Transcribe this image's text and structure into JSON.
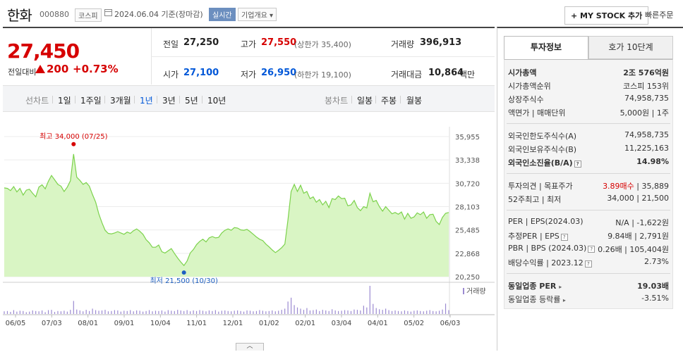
{
  "header": {
    "name": "한화",
    "code": "000880",
    "market": "코스피",
    "date": "2024.06.04 기준(장마감)",
    "realtime": "실시간",
    "company_btn": "기업개요 ▾",
    "mystock_btn": "+ MY STOCK 추가",
    "quick_order": "빠른주문"
  },
  "price": {
    "current": "27,450",
    "change_label": "전일대비",
    "change": "200",
    "change_pct": "+0.73%",
    "up_color": "#d60000"
  },
  "stats": {
    "prev_label": "전일",
    "prev": "27,250",
    "high_label": "고가",
    "high": "27,550",
    "upper_limit": "(상한가 35,400)",
    "vol_label": "거래량",
    "vol": "396,913",
    "open_label": "시가",
    "open": "27,100",
    "low_label": "저가",
    "low": "26,950",
    "lower_limit": "(하한가 19,100)",
    "amt_label": "거래대금",
    "amt": "10,864",
    "amt_unit": "백만"
  },
  "period_tabs": {
    "line_label": "선차트",
    "line_items": [
      "1일",
      "1주일",
      "3개월",
      "1년",
      "3년",
      "5년",
      "10년"
    ],
    "selected": "1년",
    "candle_label": "봉차트",
    "candle_items": [
      "일봉",
      "주봉",
      "월봉"
    ]
  },
  "chart_data": {
    "type": "area",
    "x_ticks": [
      "06/05",
      "07/03",
      "08/01",
      "09/01",
      "10/04",
      "11/01",
      "12/01",
      "01/02",
      "02/01",
      "03/04",
      "04/01",
      "05/02",
      "06/03"
    ],
    "y_ticks": [
      "35,955",
      "33,338",
      "30,720",
      "28,103",
      "25,485",
      "22,868",
      "20,250"
    ],
    "ylim": [
      20250,
      35955
    ],
    "max_label": "최고 34,000 (07/25)",
    "min_label": "최저 21,500 (10/30)",
    "volume_label": "거래량",
    "colors": {
      "line": "#7cd24c",
      "fill": "#d9f5c4",
      "max": "#d60000",
      "min": "#1d5fc2",
      "volume": "#9b8ad1"
    },
    "values": [
      30200,
      30150,
      29900,
      30350,
      29750,
      30150,
      29400,
      29950,
      30050,
      29600,
      29200,
      30300,
      30550,
      30100,
      30950,
      31600,
      31100,
      30600,
      30400,
      29800,
      30300,
      31000,
      34000,
      31400,
      31050,
      30600,
      30800,
      30400,
      29450,
      28600,
      27300,
      26300,
      25450,
      25100,
      25050,
      25150,
      25300,
      25150,
      25000,
      25250,
      25100,
      25400,
      25600,
      25350,
      25000,
      24400,
      24050,
      23550,
      23550,
      23800,
      23050,
      22900,
      23150,
      23400,
      22850,
      22350,
      21900,
      21500,
      22000,
      22900,
      23300,
      23850,
      24200,
      24450,
      24150,
      24600,
      24750,
      24600,
      24650,
      25150,
      25450,
      25600,
      25450,
      25750,
      25700,
      25500,
      25450,
      25550,
      25300,
      25000,
      24700,
      24450,
      24300,
      23900,
      23600,
      23250,
      22950,
      23200,
      23500,
      23900,
      26600,
      29800,
      30600,
      29800,
      30500,
      29600,
      29800,
      29000,
      29200,
      28600,
      28900,
      28300,
      28700,
      28000,
      29000,
      28900,
      29300,
      29000,
      29050,
      28200,
      28300,
      28800,
      28000,
      27650,
      28100,
      27950,
      29600,
      28650,
      28800,
      28100,
      27600,
      28100,
      27700,
      27300,
      27450,
      27250,
      27500,
      26700,
      27350,
      26800,
      26950,
      27400,
      27200,
      27500,
      26800,
      27200,
      27250,
      26450,
      26100,
      26900,
      27350,
      27450
    ],
    "volume": [
      0.09,
      0.1,
      0.07,
      0.13,
      0.08,
      0.11,
      0.1,
      0.06,
      0.08,
      0.12,
      0.1,
      0.09,
      0.12,
      0.06,
      0.13,
      0.14,
      0.07,
      0.1,
      0.09,
      0.11,
      0.08,
      0.14,
      0.44,
      0.15,
      0.12,
      0.09,
      0.14,
      0.1,
      0.18,
      0.13,
      0.11,
      0.12,
      0.14,
      0.09,
      0.1,
      0.13,
      0.12,
      0.08,
      0.11,
      0.1,
      0.13,
      0.09,
      0.12,
      0.11,
      0.08,
      0.1,
      0.13,
      0.09,
      0.11,
      0.1,
      0.12,
      0.08,
      0.13,
      0.11,
      0.1,
      0.14,
      0.12,
      0.1,
      0.13,
      0.09,
      0.12,
      0.1,
      0.13,
      0.11,
      0.09,
      0.12,
      0.1,
      0.13,
      0.08,
      0.11,
      0.12,
      0.1,
      0.09,
      0.11,
      0.12,
      0.1,
      0.08,
      0.12,
      0.11,
      0.09,
      0.1,
      0.13,
      0.11,
      0.09,
      0.1,
      0.12,
      0.09,
      0.11,
      0.14,
      0.18,
      0.42,
      0.55,
      0.3,
      0.22,
      0.18,
      0.14,
      0.2,
      0.12,
      0.13,
      0.15,
      0.1,
      0.14,
      0.12,
      0.1,
      0.16,
      0.12,
      0.1,
      0.11,
      0.13,
      0.12,
      0.1,
      0.15,
      0.14,
      0.12,
      0.28,
      0.22,
      0.95,
      0.34,
      0.2,
      0.16,
      0.14,
      0.18,
      0.13,
      0.1,
      0.12,
      0.1,
      0.09,
      0.12,
      0.1,
      0.08,
      0.11,
      0.12,
      0.1,
      0.09,
      0.11,
      0.13,
      0.1,
      0.09,
      0.11,
      0.15,
      0.35,
      0.13
    ]
  },
  "side": {
    "tab_invest": "투자정보",
    "tab_hoga": "호가 10단계",
    "mcap_label": "시가총액",
    "mcap": "2조 576억원",
    "mcap_rank_label": "시가총액순위",
    "mcap_rank": "코스피 153위",
    "shares_label": "상장주식수",
    "shares": "74,958,735",
    "par_label": "액면가 | 매매단위",
    "par": "5,000원 | 1주",
    "fl_limit_label": "외국인한도주식수(A)",
    "fl_limit": "74,958,735",
    "fl_hold_label": "외국인보유주식수(B)",
    "fl_hold": "11,225,163",
    "fl_ratio_label": "외국인소진율(B/A)",
    "fl_ratio": "14.98%",
    "opinion_label": "투자의견 | 목표주가",
    "opinion": "3.89매수",
    "target": "| 35,889",
    "w52_label": "52주최고 | 최저",
    "w52": "34,000 | 21,500",
    "per_label": "PER | EPS(2024.03)",
    "per": "N/A | -1,622원",
    "eper_label": "추정PER | EPS",
    "eper": "9.84배 | 2,791원",
    "pbr_label": "PBR | BPS (2024.03)",
    "pbr": "0.26배 | 105,404원",
    "div_label": "배당수익률 | 2023.12",
    "div": "2.73%",
    "ind_per_label": "동일업종 PER",
    "ind_per": "19.03배",
    "ind_rate_label": "동일업종 등락률",
    "ind_rate": "-3.51%"
  }
}
